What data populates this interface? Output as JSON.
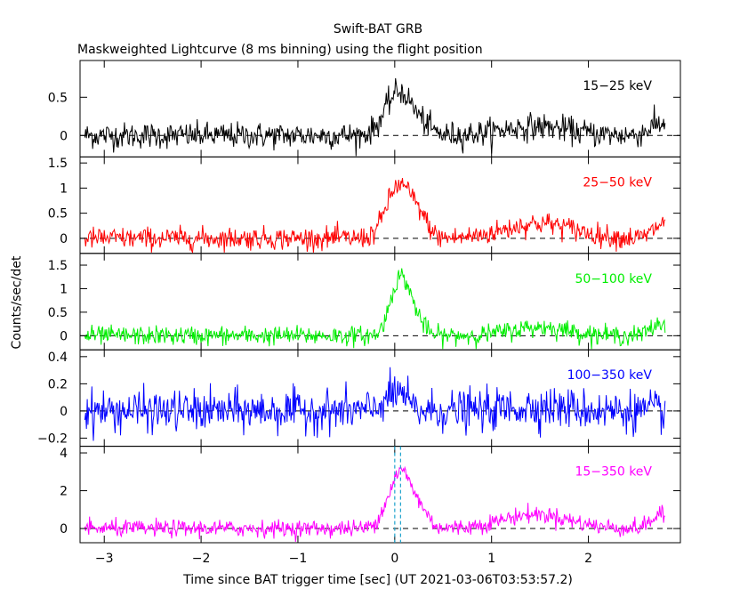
{
  "chart_data": {
    "type": "line",
    "title": "Swift-BAT GRB",
    "subtitle": "Maskweighted Lightcurve (8 ms binning) using the flight position",
    "xlabel": "Time since BAT trigger time [sec] (UT 2021-03-06T03:53:57.2)",
    "ylabel": "Counts/sec/det",
    "xlim": [
      -3.25,
      2.95
    ],
    "xticks": [
      -3,
      -2,
      -1,
      0,
      1,
      2
    ],
    "xtick_labels": [
      "−3",
      "−2",
      "−1",
      "0",
      "1",
      "2"
    ],
    "markers": [
      0.0,
      0.06
    ],
    "grid": false,
    "panels": [
      {
        "name": "15−25 keV",
        "color": "#000000",
        "ylim": [
          -0.28,
          0.98
        ],
        "yticks": [
          0,
          0.5
        ],
        "ytick_labels": [
          "0",
          "0.5"
        ],
        "noise": 0.085,
        "pulse": [
          {
            "t": -0.05,
            "a": 0.18,
            "w": 0.12
          },
          {
            "t": 0.07,
            "a": 0.45,
            "w": 0.12
          },
          {
            "t": 0.28,
            "a": 0.12,
            "w": 0.1
          }
        ],
        "hump": [
          {
            "t": 1.45,
            "a": 0.12,
            "w": 0.35
          },
          {
            "t": 2.75,
            "a": 0.15,
            "w": 0.12
          }
        ]
      },
      {
        "name": "25−50 keV",
        "color": "#ff0000",
        "ylim": [
          -0.3,
          1.62
        ],
        "yticks": [
          0,
          0.5,
          1,
          1.5
        ],
        "ytick_labels": [
          "0",
          "0.5",
          "1",
          "1.5"
        ],
        "noise": 0.11,
        "pulse": [
          {
            "t": -0.05,
            "a": 0.35,
            "w": 0.1
          },
          {
            "t": 0.09,
            "a": 0.9,
            "w": 0.12
          },
          {
            "t": 0.28,
            "a": 0.25,
            "w": 0.08
          }
        ],
        "hump": [
          {
            "t": 1.5,
            "a": 0.3,
            "w": 0.35
          },
          {
            "t": 2.78,
            "a": 0.3,
            "w": 0.1
          }
        ]
      },
      {
        "name": "50−100 keV",
        "color": "#00ee00",
        "ylim": [
          -0.3,
          1.75
        ],
        "yticks": [
          0,
          0.5,
          1,
          1.5
        ],
        "ytick_labels": [
          "0",
          "0.5",
          "1",
          "1.5"
        ],
        "noise": 0.1,
        "pulse": [
          {
            "t": -0.03,
            "a": 0.45,
            "w": 0.07
          },
          {
            "t": 0.08,
            "a": 1.05,
            "w": 0.08
          },
          {
            "t": 0.22,
            "a": 0.35,
            "w": 0.08
          }
        ],
        "hump": [
          {
            "t": 1.5,
            "a": 0.18,
            "w": 0.3
          },
          {
            "t": 2.75,
            "a": 0.25,
            "w": 0.1
          }
        ]
      },
      {
        "name": "100−350 keV",
        "color": "#0000ff",
        "ylim": [
          -0.26,
          0.45
        ],
        "yticks": [
          -0.2,
          0,
          0.2,
          0.4
        ],
        "ytick_labels": [
          "−0.2",
          "0",
          "0.2",
          "0.4"
        ],
        "noise": 0.075,
        "pulse": [
          {
            "t": -0.1,
            "a": 0.08,
            "w": 0.05
          },
          {
            "t": 0.05,
            "a": 0.14,
            "w": 0.07
          }
        ],
        "hump": [
          {
            "t": 1.5,
            "a": 0.03,
            "w": 0.3
          }
        ]
      },
      {
        "name": "15−350 keV",
        "color": "#ff00ff",
        "ylim": [
          -0.75,
          4.35
        ],
        "yticks": [
          0,
          2,
          4
        ],
        "ytick_labels": [
          "0",
          "2",
          "4"
        ],
        "noise": 0.22,
        "pulse": [
          {
            "t": -0.05,
            "a": 1.0,
            "w": 0.1
          },
          {
            "t": 0.09,
            "a": 2.6,
            "w": 0.1
          },
          {
            "t": 0.28,
            "a": 0.8,
            "w": 0.08
          }
        ],
        "hump": [
          {
            "t": 1.45,
            "a": 0.75,
            "w": 0.35
          },
          {
            "t": 2.75,
            "a": 0.7,
            "w": 0.1
          }
        ]
      }
    ]
  }
}
